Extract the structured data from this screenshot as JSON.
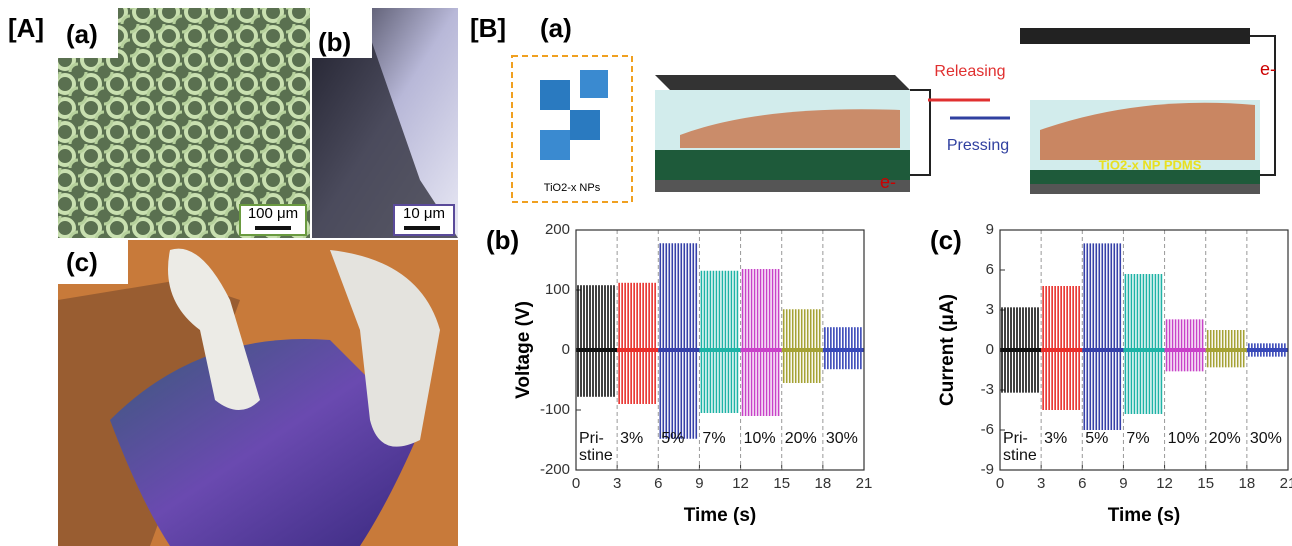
{
  "panels": {
    "A": {
      "label": "[A]",
      "a": {
        "label": "(a)",
        "scale": "100 μm"
      },
      "b": {
        "label": "(b)",
        "scale": "10 μm"
      },
      "c": {
        "label": "(c)"
      }
    },
    "B": {
      "label": "[B]",
      "a": {
        "label": "(a)",
        "releasing": "Releasing",
        "pressing": "Pressing",
        "electron_left": "e-",
        "electron_right": "e-",
        "inset": "TiO2-x NPs",
        "layer": "TiO2-x NP PDMS"
      }
    }
  },
  "chart_data": [
    {
      "type": "pulse",
      "label": "(b)",
      "x_label": "Time (s)",
      "y_label": "Voltage (V)",
      "xlim": [
        0,
        21
      ],
      "xticks": [
        0,
        3,
        6,
        9,
        12,
        15,
        18,
        21
      ],
      "ylim": [
        -200,
        200
      ],
      "yticks": [
        -200,
        -100,
        0,
        100,
        200
      ],
      "series": [
        {
          "name": "Pri-stine",
          "color": "#111111",
          "x": [
            0,
            3
          ],
          "values": [
            108,
            -78
          ]
        },
        {
          "name": "3%",
          "color": "#e8302c",
          "x": [
            3,
            6
          ],
          "values": [
            112,
            -90
          ]
        },
        {
          "name": "5%",
          "color": "#3540a8",
          "x": [
            6,
            9
          ],
          "values": [
            178,
            -148
          ]
        },
        {
          "name": "7%",
          "color": "#1eb3a6",
          "x": [
            9,
            12
          ],
          "values": [
            132,
            -105
          ]
        },
        {
          "name": "10%",
          "color": "#c842c8",
          "x": [
            12,
            15
          ],
          "values": [
            135,
            -110
          ]
        },
        {
          "name": "20%",
          "color": "#a5a235",
          "x": [
            15,
            18
          ],
          "values": [
            68,
            -55
          ]
        },
        {
          "name": "30%",
          "color": "#3848b8",
          "x": [
            18,
            21
          ],
          "values": [
            38,
            -32
          ]
        }
      ]
    },
    {
      "type": "pulse",
      "label": "(c)",
      "x_label": "Time (s)",
      "y_label": "Current (μA)",
      "xlim": [
        0,
        21
      ],
      "xticks": [
        0,
        3,
        6,
        9,
        12,
        15,
        18,
        21
      ],
      "ylim": [
        -9,
        9
      ],
      "yticks": [
        -9,
        -6,
        -3,
        0,
        3,
        6,
        9
      ],
      "series": [
        {
          "name": "Pri-stine",
          "color": "#111111",
          "x": [
            0,
            3
          ],
          "values": [
            3.2,
            -3.2
          ]
        },
        {
          "name": "3%",
          "color": "#e8302c",
          "x": [
            3,
            6
          ],
          "values": [
            4.8,
            -4.5
          ]
        },
        {
          "name": "5%",
          "color": "#3540a8",
          "x": [
            6,
            9
          ],
          "values": [
            8,
            -6
          ]
        },
        {
          "name": "7%",
          "color": "#1eb3a6",
          "x": [
            9,
            12
          ],
          "values": [
            5.7,
            -4.8
          ]
        },
        {
          "name": "10%",
          "color": "#c842c8",
          "x": [
            12,
            15
          ],
          "values": [
            2.3,
            -1.6
          ]
        },
        {
          "name": "20%",
          "color": "#a5a235",
          "x": [
            15,
            18
          ],
          "values": [
            1.5,
            -1.3
          ]
        },
        {
          "name": "30%",
          "color": "#3848b8",
          "x": [
            18,
            21
          ],
          "values": [
            0.5,
            -0.5
          ]
        }
      ]
    }
  ]
}
